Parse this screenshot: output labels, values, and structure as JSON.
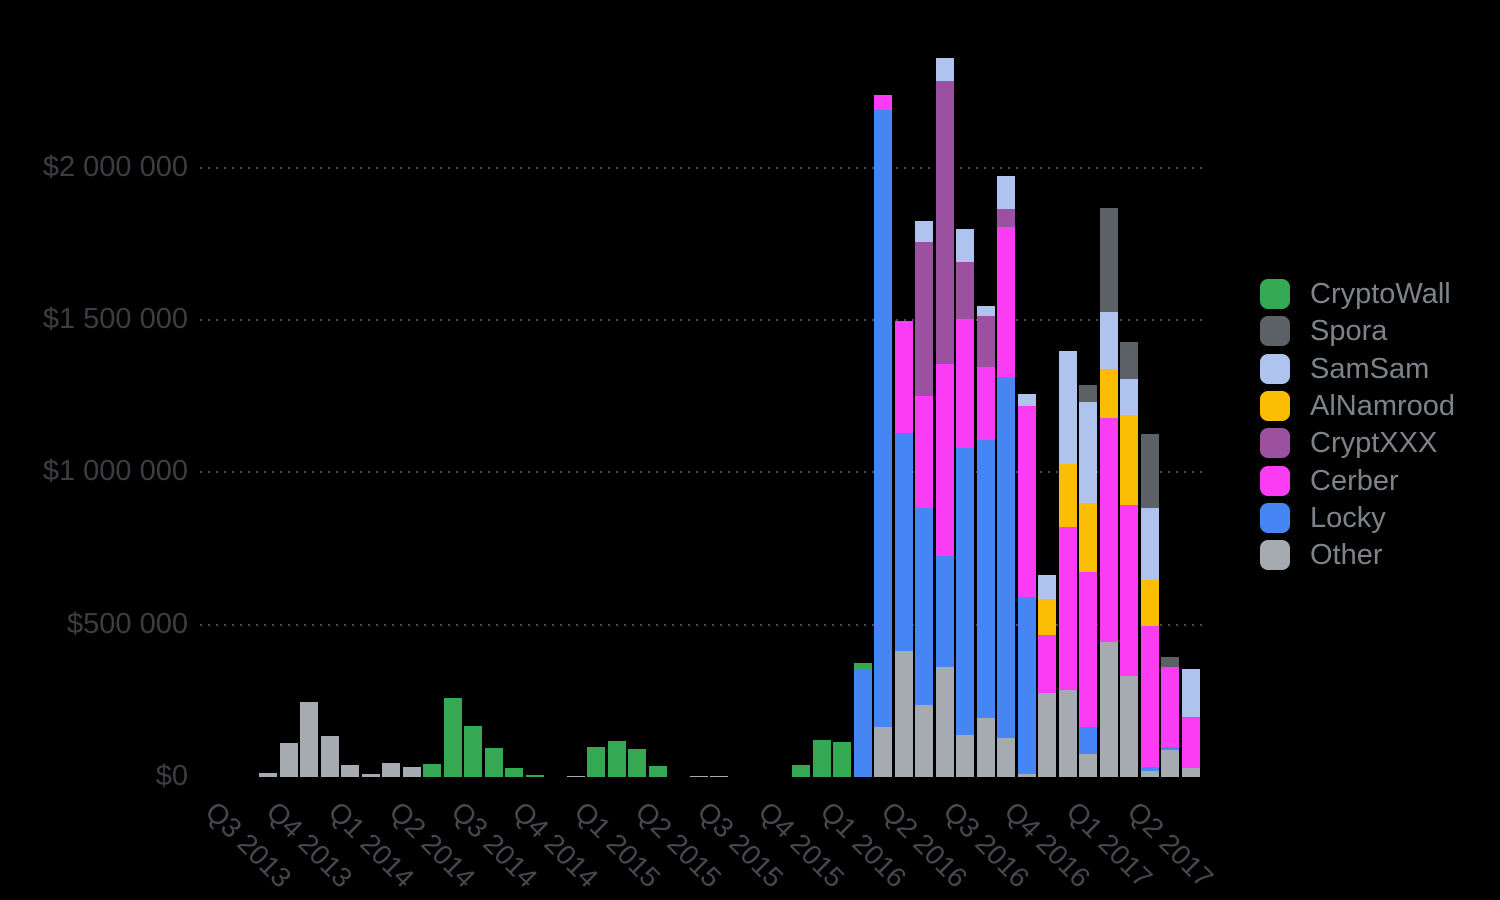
{
  "chart_data": {
    "type": "bar",
    "subtype": "stacked-monthly-bars-grouped-by-quarter",
    "title": "",
    "ylabel": "",
    "xlabel": "",
    "grid": "dotted-horizontal",
    "background_color": "#000000",
    "legend_position": "right",
    "y_axis": {
      "ticks": [
        {
          "label": "$0",
          "value": 0
        },
        {
          "label": "$500 000",
          "value": 500000
        },
        {
          "label": "$1 000 000",
          "value": 1000000
        },
        {
          "label": "$1 500 000",
          "value": 1500000
        },
        {
          "label": "$2 000 000",
          "value": 2000000
        }
      ],
      "ylim": [
        0,
        2400000
      ]
    },
    "x_axis": {
      "quarter_labels": [
        "Q3 2013",
        "Q4 2013",
        "Q1 2014",
        "Q2 2014",
        "Q3 2014",
        "Q4 2014",
        "Q1 2015",
        "Q2 2015",
        "Q3 2015",
        "Q4 2015",
        "Q1 2016",
        "Q2 2016",
        "Q3 2016",
        "Q4 2016",
        "Q1 2017",
        "Q2 2017"
      ],
      "bars_per_quarter": 3
    },
    "series": [
      {
        "name": "CryptoWall",
        "color": "#34a853"
      },
      {
        "name": "Spora",
        "color": "#5c6167"
      },
      {
        "name": "SamSam",
        "color": "#aec3ee"
      },
      {
        "name": "AlNamrood",
        "color": "#fbbc04"
      },
      {
        "name": "CryptXXX",
        "color": "#9b50a0"
      },
      {
        "name": "Cerber",
        "color": "#fa3cf4"
      },
      {
        "name": "Locky",
        "color": "#4585f4"
      },
      {
        "name": "Other",
        "color": "#a5abb1"
      }
    ],
    "stack_order_bottom_to_top": [
      "Other",
      "Locky",
      "Cerber",
      "CryptXXX",
      "AlNamrood",
      "SamSam",
      "Spora",
      "CryptoWall"
    ],
    "bars": [
      {
        "quarter": "Q3 2013",
        "segments": []
      },
      {
        "quarter": "Q3 2013",
        "segments": []
      },
      {
        "quarter": "Q3 2013",
        "segments": [
          [
            "Other",
            13000
          ]
        ]
      },
      {
        "quarter": "Q4 2013",
        "segments": [
          [
            "Other",
            112000
          ]
        ]
      },
      {
        "quarter": "Q4 2013",
        "segments": [
          [
            "Other",
            247000
          ]
        ]
      },
      {
        "quarter": "Q4 2013",
        "segments": [
          [
            "Other",
            135000
          ]
        ]
      },
      {
        "quarter": "Q1 2014",
        "segments": [
          [
            "Other",
            39000
          ]
        ]
      },
      {
        "quarter": "Q1 2014",
        "segments": [
          [
            "Other",
            10000
          ]
        ]
      },
      {
        "quarter": "Q1 2014",
        "segments": [
          [
            "Other",
            46000
          ]
        ]
      },
      {
        "quarter": "Q2 2014",
        "segments": [
          [
            "Other",
            33000
          ]
        ]
      },
      {
        "quarter": "Q2 2014",
        "segments": [
          [
            "CryptoWall",
            43000
          ]
        ]
      },
      {
        "quarter": "Q2 2014",
        "segments": [
          [
            "CryptoWall",
            260000
          ]
        ]
      },
      {
        "quarter": "Q3 2014",
        "segments": [
          [
            "CryptoWall",
            168000
          ]
        ]
      },
      {
        "quarter": "Q3 2014",
        "segments": [
          [
            "CryptoWall",
            95000
          ]
        ]
      },
      {
        "quarter": "Q3 2014",
        "segments": [
          [
            "CryptoWall",
            30000
          ]
        ]
      },
      {
        "quarter": "Q4 2014",
        "segments": [
          [
            "CryptoWall",
            7000
          ]
        ]
      },
      {
        "quarter": "Q4 2014",
        "segments": []
      },
      {
        "quarter": "Q4 2014",
        "segments": [
          [
            "Other",
            4000
          ]
        ]
      },
      {
        "quarter": "Q1 2015",
        "segments": [
          [
            "CryptoWall",
            99000
          ]
        ]
      },
      {
        "quarter": "Q1 2015",
        "segments": [
          [
            "CryptoWall",
            118000
          ]
        ]
      },
      {
        "quarter": "Q1 2015",
        "segments": [
          [
            "CryptoWall",
            92000
          ]
        ]
      },
      {
        "quarter": "Q2 2015",
        "segments": [
          [
            "CryptoWall",
            36000
          ]
        ]
      },
      {
        "quarter": "Q2 2015",
        "segments": []
      },
      {
        "quarter": "Q2 2015",
        "segments": [
          [
            "Other",
            4000
          ]
        ]
      },
      {
        "quarter": "Q3 2015",
        "segments": [
          [
            "Other",
            4000
          ]
        ]
      },
      {
        "quarter": "Q3 2015",
        "segments": []
      },
      {
        "quarter": "Q3 2015",
        "segments": []
      },
      {
        "quarter": "Q4 2015",
        "segments": []
      },
      {
        "quarter": "Q4 2015",
        "segments": [
          [
            "CryptoWall",
            40000
          ]
        ]
      },
      {
        "quarter": "Q4 2015",
        "segments": [
          [
            "CryptoWall",
            122000
          ]
        ]
      },
      {
        "quarter": "Q1 2016",
        "segments": [
          [
            "CryptoWall",
            115000
          ]
        ]
      },
      {
        "quarter": "Q1 2016",
        "segments": [
          [
            "Locky",
            352000
          ],
          [
            "CryptoWall",
            23000
          ]
        ]
      },
      {
        "quarter": "Q1 2016",
        "segments": [
          [
            "Other",
            165000
          ],
          [
            "Locky",
            2025000
          ],
          [
            "Cerber",
            50000
          ]
        ]
      },
      {
        "quarter": "Q2 2016",
        "segments": [
          [
            "Other",
            415000
          ],
          [
            "Locky",
            714000
          ],
          [
            "Cerber",
            368000
          ]
        ]
      },
      {
        "quarter": "Q2 2016",
        "segments": [
          [
            "Other",
            237000
          ],
          [
            "Locky",
            645000
          ],
          [
            "Cerber",
            368000
          ],
          [
            "CryptXXX",
            507000
          ],
          [
            "SamSam",
            69000
          ]
        ]
      },
      {
        "quarter": "Q2 2016",
        "segments": [
          [
            "Other",
            362000
          ],
          [
            "Locky",
            362000
          ],
          [
            "Cerber",
            632000
          ],
          [
            "CryptXXX",
            928000
          ],
          [
            "SamSam",
            76000
          ]
        ]
      },
      {
        "quarter": "Q3 2016",
        "segments": [
          [
            "Other",
            138000
          ],
          [
            "Locky",
            941000
          ],
          [
            "Cerber",
            424000
          ],
          [
            "CryptXXX",
            188000
          ],
          [
            "SamSam",
            109000
          ]
        ]
      },
      {
        "quarter": "Q3 2016",
        "segments": [
          [
            "Other",
            194000
          ],
          [
            "Locky",
            911000
          ],
          [
            "Cerber",
            240000
          ],
          [
            "CryptXXX",
            168000
          ],
          [
            "SamSam",
            33000
          ]
        ]
      },
      {
        "quarter": "Q3 2016",
        "segments": [
          [
            "Other",
            128000
          ],
          [
            "Locky",
            1184000
          ],
          [
            "Cerber",
            493000
          ],
          [
            "CryptXXX",
            59000
          ],
          [
            "SamSam",
            109000
          ]
        ]
      },
      {
        "quarter": "Q4 2016",
        "segments": [
          [
            "Other",
            10000
          ],
          [
            "Locky",
            582000
          ],
          [
            "Cerber",
            625000
          ],
          [
            "SamSam",
            39000
          ]
        ]
      },
      {
        "quarter": "Q4 2016",
        "segments": [
          [
            "Other",
            276000
          ],
          [
            "Cerber",
            191000
          ],
          [
            "AlNamrood",
            118000
          ],
          [
            "SamSam",
            79000
          ]
        ]
      },
      {
        "quarter": "Q4 2016",
        "segments": [
          [
            "Other",
            285000
          ],
          [
            "Cerber",
            535000
          ],
          [
            "AlNamrood",
            207000
          ],
          [
            "SamSam",
            370000
          ]
        ]
      },
      {
        "quarter": "Q1 2017",
        "segments": [
          [
            "Other",
            76000
          ],
          [
            "Locky",
            89000
          ],
          [
            "Cerber",
            507000
          ],
          [
            "AlNamrood",
            227000
          ],
          [
            "SamSam",
            332000
          ],
          [
            "Spora",
            56000
          ]
        ]
      },
      {
        "quarter": "Q1 2017",
        "segments": [
          [
            "Other",
            444000
          ],
          [
            "Cerber",
            734000
          ],
          [
            "AlNamrood",
            161000
          ],
          [
            "SamSam",
            188000
          ],
          [
            "Spora",
            342000
          ]
        ]
      },
      {
        "quarter": "Q1 2017",
        "segments": [
          [
            "Other",
            332000
          ],
          [
            "Cerber",
            562000
          ],
          [
            "AlNamrood",
            296000
          ],
          [
            "SamSam",
            115000
          ],
          [
            "Spora",
            122000
          ]
        ]
      },
      {
        "quarter": "Q2 2017",
        "segments": [
          [
            "Other",
            20000
          ],
          [
            "Locky",
            13000
          ],
          [
            "Cerber",
            464000
          ],
          [
            "AlNamrood",
            151000
          ],
          [
            "SamSam",
            234000
          ],
          [
            "Spora",
            243000
          ]
        ]
      },
      {
        "quarter": "Q2 2017",
        "segments": [
          [
            "Other",
            89000
          ],
          [
            "Locky",
            10000
          ],
          [
            "Cerber",
            263000
          ],
          [
            "Spora",
            33000
          ]
        ]
      },
      {
        "quarter": "Q2 2017",
        "segments": [
          [
            "Other",
            30000
          ],
          [
            "Cerber",
            168000
          ],
          [
            "SamSam",
            155000
          ]
        ]
      }
    ]
  },
  "legend": {
    "items": [
      "CryptoWall",
      "Spora",
      "SamSam",
      "AlNamrood",
      "CryptXXX",
      "Cerber",
      "Locky",
      "Other"
    ]
  }
}
